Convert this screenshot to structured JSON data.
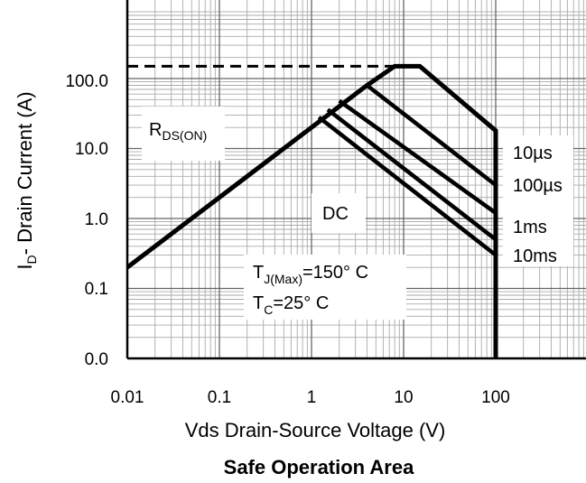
{
  "chart_data": {
    "type": "line",
    "title": "Safe Operation Area",
    "xlabel": "Vds Drain-Source Voltage (V)",
    "ylabel": {
      "main": "I",
      "sub": "D",
      "rest": "- Drain Current (A)"
    },
    "xscale": "log",
    "yscale": "log",
    "xlim": [
      0.01,
      1000
    ],
    "ylim": [
      0.01,
      1000
    ],
    "x_ticks": [
      {
        "value": 0.01,
        "label": "0.01"
      },
      {
        "value": 0.1,
        "label": "0.1"
      },
      {
        "value": 1,
        "label": "1"
      },
      {
        "value": 10,
        "label": "10"
      },
      {
        "value": 100,
        "label": "100"
      }
    ],
    "y_ticks": [
      {
        "value": 0.01,
        "label": "0.0"
      },
      {
        "value": 0.1,
        "label": "0.1"
      },
      {
        "value": 1,
        "label": "1.0"
      },
      {
        "value": 10,
        "label": "10.0"
      },
      {
        "value": 100,
        "label": "100.0"
      }
    ],
    "grid": true,
    "series": [
      {
        "name": "10µs",
        "x": [
          0.01,
          4.0,
          8.0,
          15.0,
          100,
          100
        ],
        "y": [
          0.2,
          80,
          150,
          150,
          18,
          0.01
        ]
      },
      {
        "name": "100µs",
        "x": [
          4.0,
          100
        ],
        "y": [
          80,
          3.0
        ]
      },
      {
        "name": "1ms",
        "x": [
          2.0,
          100
        ],
        "y": [
          48,
          1.2
        ]
      },
      {
        "name": "10ms",
        "x": [
          1.5,
          100
        ],
        "y": [
          36,
          0.5
        ]
      },
      {
        "name": "DC",
        "x": [
          1.2,
          100
        ],
        "y": [
          28,
          0.3
        ]
      }
    ],
    "limit_line": {
      "x": [
        0.01,
        15.0
      ],
      "y": [
        150,
        150
      ],
      "style": "dashed"
    },
    "annotations": {
      "rds_on": {
        "main": "R",
        "sub": "DS(ON)"
      },
      "dc": "DC",
      "tj": {
        "main": "T",
        "sub": "J(Max)",
        "rest": "=150° C"
      },
      "tc": {
        "main": "T",
        "sub": "C",
        "rest": "=25° C"
      }
    }
  }
}
